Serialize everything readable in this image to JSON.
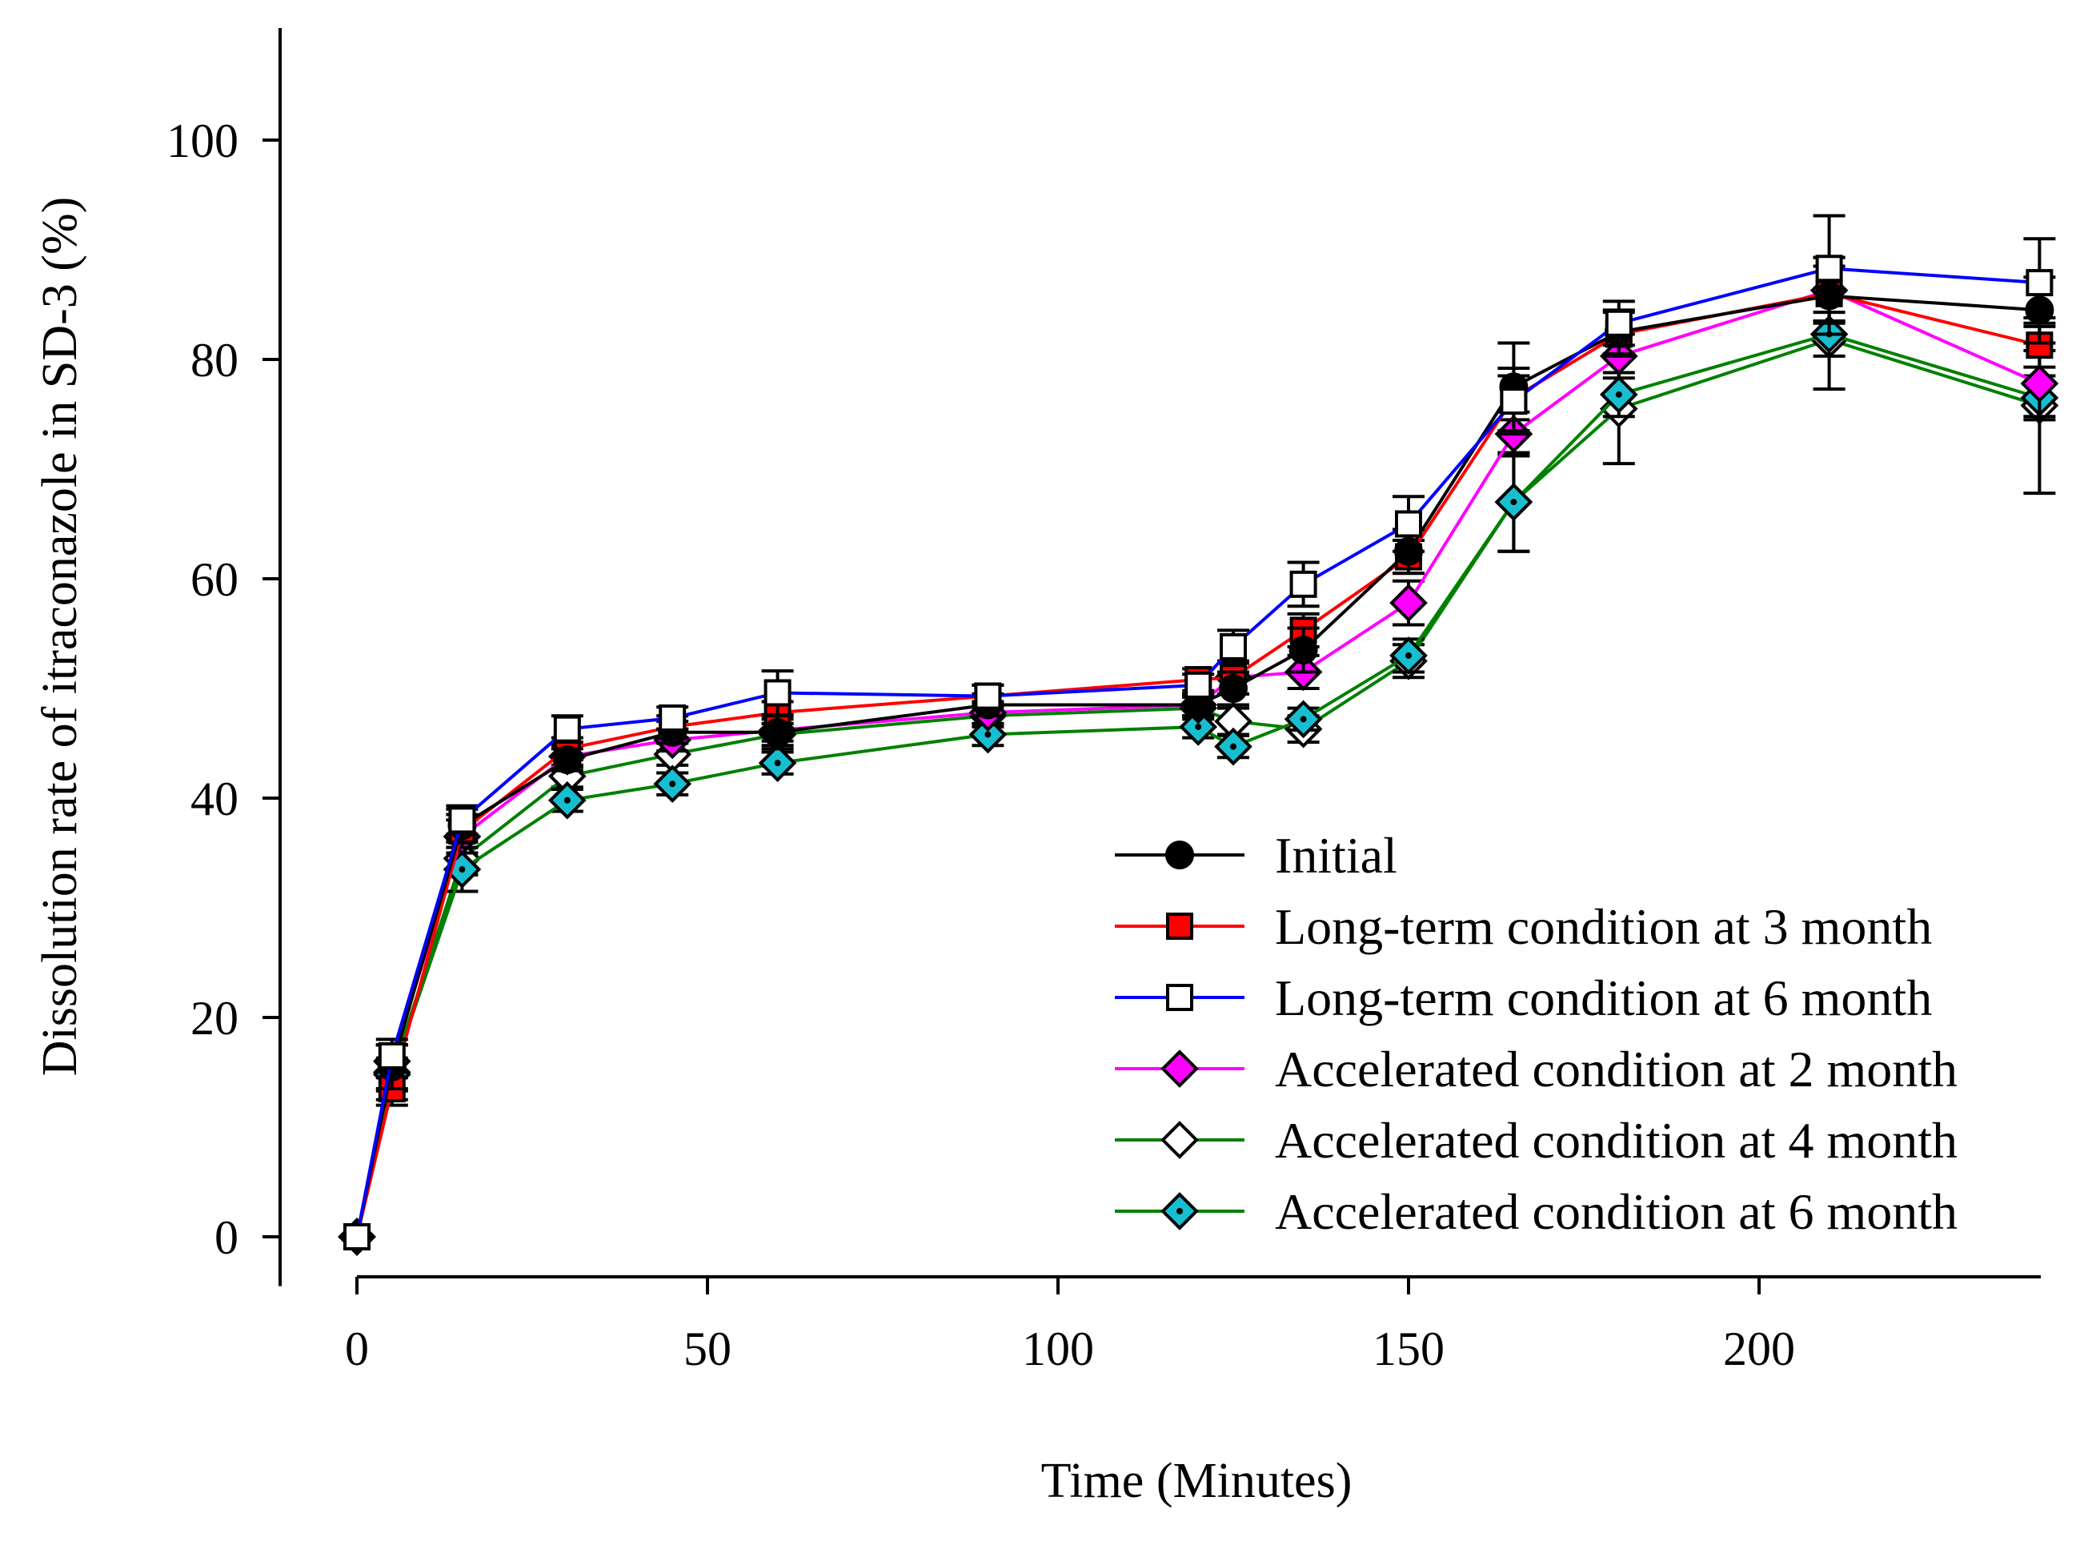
{
  "chart_data": {
    "type": "line",
    "title": "",
    "xlabel": "Time (Minutes)",
    "ylabel": "Dissolution rate of itraconazole in SD-3 (%)",
    "xlim": [
      -5,
      240
    ],
    "ylim": [
      -4,
      110
    ],
    "xticks": [
      0,
      50,
      100,
      150,
      200
    ],
    "yticks": [
      0,
      20,
      40,
      60,
      80,
      100
    ],
    "legend_position": "bottom-right",
    "x": [
      0,
      5,
      15,
      30,
      45,
      60,
      90,
      120,
      125,
      135,
      150,
      165,
      180,
      210,
      240
    ],
    "series": [
      {
        "name": "Initial",
        "line_color": "#000000",
        "marker": "circle",
        "marker_fill": "#000000",
        "values": [
          0,
          15.5,
          37.5,
          43.5,
          46,
          46,
          48.5,
          48.5,
          50,
          53.5,
          62.5,
          77.5,
          82.5,
          85.8,
          84.5
        ],
        "errors": [
          0,
          2,
          1.5,
          1,
          1,
          1.5,
          1,
          1,
          1.5,
          2,
          2,
          4,
          2,
          3.5,
          3
        ]
      },
      {
        "name": "Long-term condition at 3 month",
        "line_color": "#ff0000",
        "marker": "square",
        "marker_fill": "#ff0000",
        "values": [
          0,
          13.5,
          37,
          44.5,
          46.5,
          47.8,
          49.3,
          50.8,
          51,
          55.3,
          62,
          76.5,
          82.3,
          86,
          81.3
        ],
        "errors": [
          0,
          1.5,
          1.5,
          1,
          1,
          1,
          1,
          1,
          1.5,
          1.5,
          1.5,
          2,
          2,
          2.5,
          2
        ]
      },
      {
        "name": "Long-term condition at 6 month",
        "line_color": "#0000ff",
        "marker": "square",
        "marker_fill": "#ffffff",
        "values": [
          0,
          16.5,
          38,
          46.3,
          47.3,
          49.6,
          49.3,
          50.3,
          53.8,
          59.5,
          65,
          76.2,
          83.3,
          88.3,
          87
        ],
        "errors": [
          0,
          1.5,
          1.3,
          1.2,
          1,
          2,
          1,
          1,
          1.5,
          2,
          2.5,
          3,
          2,
          4.8,
          4
        ]
      },
      {
        "name": "Accelerated condition at 2 month",
        "line_color": "#ff00ff",
        "marker": "diamond",
        "marker_fill": "#ff00ff",
        "values": [
          0,
          16,
          36.5,
          43.8,
          45.3,
          46.2,
          47.8,
          48.5,
          51,
          51.5,
          57.8,
          73.2,
          80.3,
          86.3,
          77.8
        ],
        "errors": [
          0,
          1.5,
          1.5,
          1,
          1,
          1,
          1,
          1,
          1.5,
          1.5,
          2,
          2,
          2,
          3,
          3
        ]
      },
      {
        "name": "Accelerated condition at 4 month",
        "line_color": "#008000",
        "marker": "diamond",
        "marker_fill": "#ffffff",
        "values": [
          0,
          15,
          34.5,
          42,
          44,
          45.8,
          47.5,
          48.2,
          47,
          46.3,
          52.5,
          67,
          75.5,
          81.8,
          75.8
        ],
        "errors": [
          0,
          2.5,
          1.5,
          1,
          1,
          1,
          1,
          1,
          1.2,
          1.2,
          1.5,
          4.5,
          5,
          4.5,
          8
        ]
      },
      {
        "name": "Accelerated condition at 6 month",
        "line_color": "#008000",
        "marker": "diamond",
        "marker_fill": "#17becf",
        "values": [
          0,
          14.8,
          33.5,
          39.8,
          41.3,
          43.2,
          45.8,
          46.5,
          44.7,
          47.2,
          53,
          67,
          76.8,
          82.3,
          76.5
        ],
        "errors": [
          0,
          1.5,
          2,
          1,
          1,
          1,
          1,
          1,
          1,
          1,
          1.5,
          4.5,
          2,
          2,
          2
        ]
      }
    ]
  }
}
